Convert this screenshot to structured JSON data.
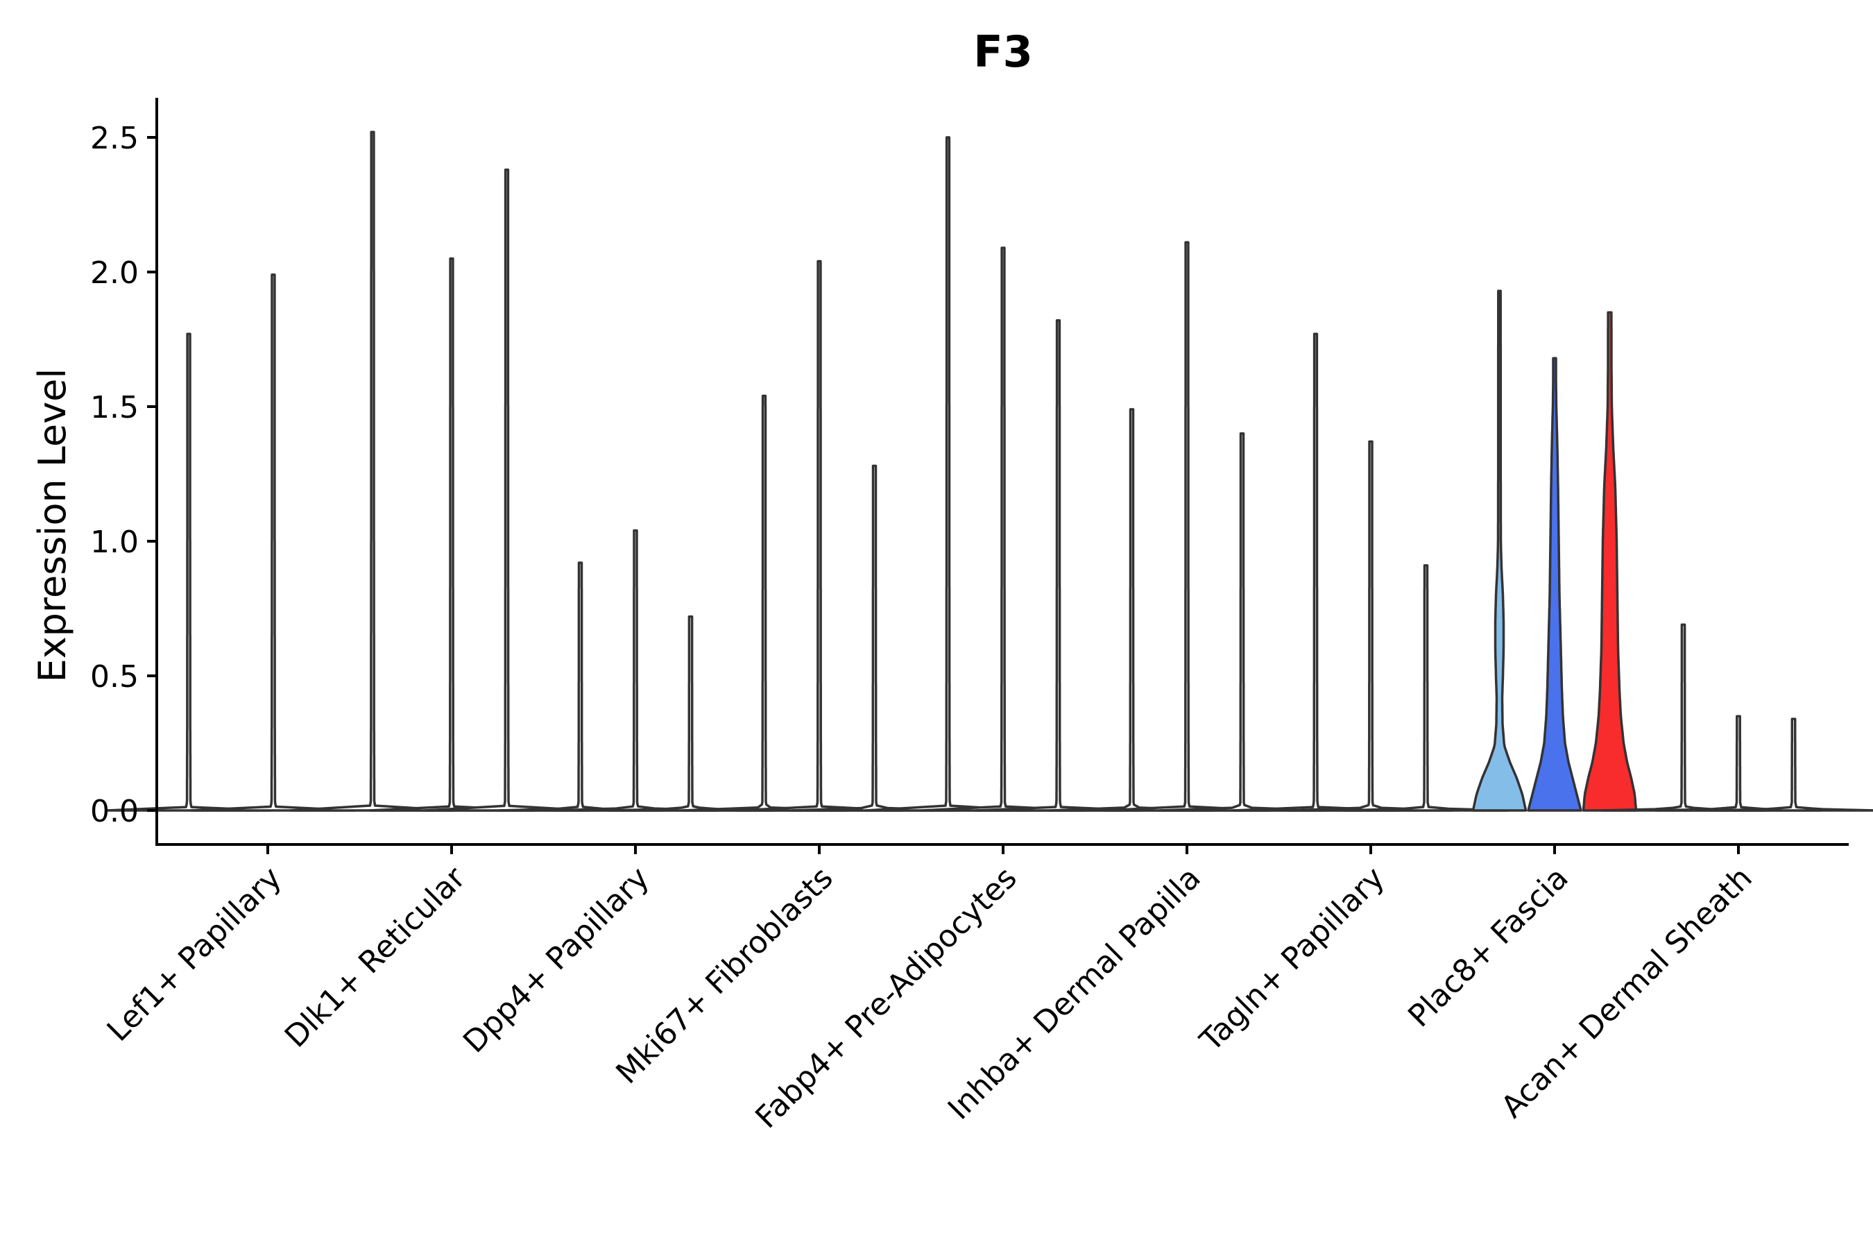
{
  "chart_data": {
    "type": "violin",
    "title": "F3",
    "xlabel": "",
    "ylabel": "Expression Level",
    "ylim": [
      -0.12,
      2.65
    ],
    "yticks": [
      0.0,
      0.5,
      1.0,
      1.5,
      2.0,
      2.5
    ],
    "ytick_labels": [
      "0.0",
      "0.5",
      "1.0",
      "1.5",
      "2.0",
      "2.5"
    ],
    "categories": [
      "Lef1+ Papillary",
      "Dlk1+ Reticular",
      "Dpp4+ Papillary",
      "Mki67+ Fibroblasts",
      "Fabp4+ Pre-Adipocytes",
      "Inhba+ Dermal Papilla",
      "Tagln+ Papillary",
      "Plac8+ Fascia",
      "Acan+ Dermal Sheath"
    ],
    "violins": [
      {
        "name": "v1",
        "group": 0,
        "x": 0.57,
        "max": 1.77,
        "color": "#ffffff",
        "profile": "flat"
      },
      {
        "name": "v2",
        "group": 0,
        "x": 1.03,
        "max": 1.99,
        "color": "#ffffff",
        "profile": "flat"
      },
      {
        "name": "v3",
        "group": 1,
        "x": 1.57,
        "max": 2.52,
        "color": "#ffffff",
        "profile": "flat"
      },
      {
        "name": "v4",
        "group": 1,
        "x": 2.0,
        "max": 2.05,
        "color": "#ffffff",
        "profile": "flat"
      },
      {
        "name": "v5",
        "group": 1,
        "x": 2.3,
        "max": 2.38,
        "color": "#ffffff",
        "profile": "flat"
      },
      {
        "name": "v6",
        "group": 2,
        "x": 2.7,
        "max": 0.92,
        "color": "#ffffff",
        "profile": "flat"
      },
      {
        "name": "v7",
        "group": 2,
        "x": 3.0,
        "max": 1.04,
        "color": "#ffffff",
        "profile": "flat"
      },
      {
        "name": "v8",
        "group": 2,
        "x": 3.3,
        "max": 0.72,
        "color": "#ffffff",
        "profile": "flat"
      },
      {
        "name": "v9",
        "group": 3,
        "x": 3.7,
        "max": 1.54,
        "color": "#ffffff",
        "profile": "flat"
      },
      {
        "name": "v10",
        "group": 3,
        "x": 4.0,
        "max": 2.04,
        "color": "#ffffff",
        "profile": "flat"
      },
      {
        "name": "v11",
        "group": 3,
        "x": 4.3,
        "max": 1.28,
        "color": "#ffffff",
        "profile": "flat"
      },
      {
        "name": "v12",
        "group": 4,
        "x": 4.7,
        "max": 2.5,
        "color": "#ffffff",
        "profile": "flat"
      },
      {
        "name": "v13",
        "group": 4,
        "x": 5.0,
        "max": 2.09,
        "color": "#ffffff",
        "profile": "flat"
      },
      {
        "name": "v14",
        "group": 4,
        "x": 5.3,
        "max": 1.82,
        "color": "#ffffff",
        "profile": "flat"
      },
      {
        "name": "v15",
        "group": 5,
        "x": 5.7,
        "max": 1.49,
        "color": "#ffffff",
        "profile": "flat"
      },
      {
        "name": "v16",
        "group": 5,
        "x": 6.0,
        "max": 2.11,
        "color": "#ffffff",
        "profile": "flat"
      },
      {
        "name": "v17",
        "group": 5,
        "x": 6.3,
        "max": 1.4,
        "color": "#ffffff",
        "profile": "flat"
      },
      {
        "name": "v18",
        "group": 6,
        "x": 6.7,
        "max": 1.77,
        "color": "#ffffff",
        "profile": "flat"
      },
      {
        "name": "v19",
        "group": 6,
        "x": 7.0,
        "max": 1.37,
        "color": "#ffffff",
        "profile": "flat"
      },
      {
        "name": "v20",
        "group": 6,
        "x": 7.3,
        "max": 0.91,
        "color": "#ffffff",
        "profile": "flat"
      },
      {
        "name": "v21",
        "group": 7,
        "x": 7.7,
        "max": 1.93,
        "color": "#85bde9",
        "profile": "light"
      },
      {
        "name": "v22",
        "group": 7,
        "x": 8.0,
        "max": 1.68,
        "color": "#4a72ec",
        "profile": "blue"
      },
      {
        "name": "v23",
        "group": 7,
        "x": 8.3,
        "max": 1.85,
        "color": "#f82c2c",
        "profile": "red"
      },
      {
        "name": "v24",
        "group": 8,
        "x": 8.7,
        "max": 0.69,
        "color": "#ffffff",
        "profile": "flat"
      },
      {
        "name": "v25",
        "group": 8,
        "x": 9.0,
        "max": 0.35,
        "color": "#ffffff",
        "profile": "flat"
      },
      {
        "name": "v26",
        "group": 8,
        "x": 9.3,
        "max": 0.34,
        "color": "#ffffff",
        "profile": "flat"
      }
    ]
  }
}
